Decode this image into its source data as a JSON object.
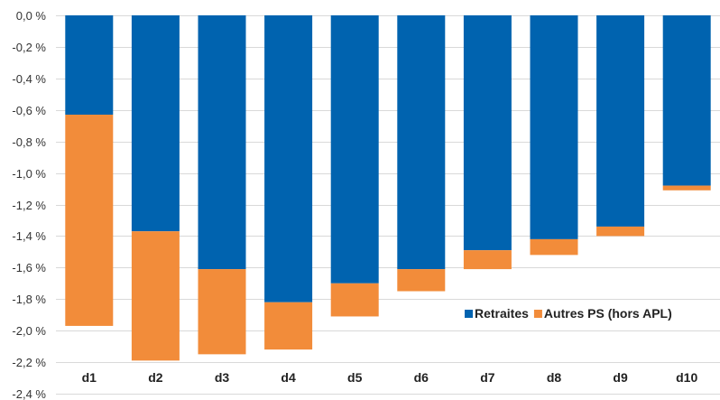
{
  "chart_data": {
    "type": "bar",
    "stacked": true,
    "orientation": "vertical",
    "categories": [
      "d1",
      "d2",
      "d3",
      "d4",
      "d5",
      "d6",
      "d7",
      "d8",
      "d9",
      "d10"
    ],
    "series": [
      {
        "name": "Retraites",
        "color": "#0063AF",
        "values": [
          -0.63,
          -1.37,
          -1.61,
          -1.82,
          -1.7,
          -1.61,
          -1.49,
          -1.42,
          -1.34,
          -1.08
        ]
      },
      {
        "name": "Autres PS (hors APL)",
        "color": "#F28C3A",
        "values": [
          -1.34,
          -0.82,
          -0.54,
          -0.3,
          -0.21,
          -0.14,
          -0.12,
          -0.1,
          -0.06,
          -0.03
        ]
      }
    ],
    "ylim": [
      -2.4,
      0.0
    ],
    "yticks": [
      0.0,
      -0.2,
      -0.4,
      -0.6,
      -0.8,
      -1.0,
      -1.2,
      -1.4,
      -1.6,
      -1.8,
      -2.0,
      -2.2,
      -2.4
    ],
    "ytick_labels": [
      "0,0 %",
      "-0,2 %",
      "-0,4 %",
      "-0,6 %",
      "-0,8 %",
      "-1,0 %",
      "-1,2 %",
      "-1,4 %",
      "-1,6 %",
      "-1,8 %",
      "-2,0 %",
      "-2,2 %",
      "-2,4 %"
    ],
    "grid": true,
    "legend_position": "bottom-right",
    "title": "",
    "xlabel": "",
    "ylabel": ""
  }
}
